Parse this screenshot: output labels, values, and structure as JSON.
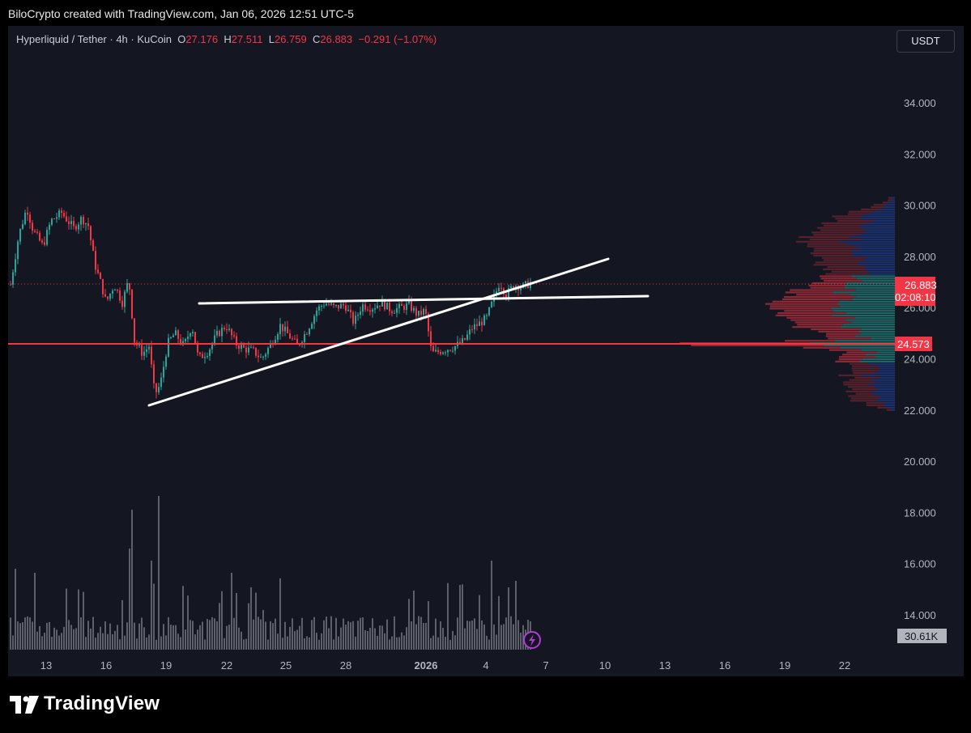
{
  "attribution": "BiloCrypto created with TradingView.com, Jan 06, 2026 12:51 UTC-5",
  "header": {
    "symbol": "Hyperliquid / Tether · 4h · KuCoin",
    "o_label": "O",
    "o_value": "27.176",
    "h_label": "H",
    "h_value": "27.511",
    "l_label": "L",
    "l_value": "26.759",
    "c_label": "C",
    "c_value": "26.883",
    "change": "−0.291 (−1.07%)"
  },
  "currency_button": "USDT",
  "brand": "TradingView",
  "colors": {
    "up": "#26a69a",
    "down": "#f23645",
    "background": "#141721",
    "text": "#b2b5be"
  },
  "chart_data": {
    "type": "candlestick",
    "symbol": "Hyperliquid / Tether",
    "interval": "4h",
    "exchange": "KuCoin",
    "ohlc_last": {
      "open": 27.176,
      "high": 27.511,
      "low": 26.759,
      "close": 26.883,
      "change": -0.291,
      "change_pct": -1.07
    },
    "ylim": [
      13.2,
      36.0
    ],
    "y_ticks": [
      "34.000",
      "32.000",
      "30.000",
      "28.000",
      "26.000",
      "24.000",
      "22.000",
      "20.000",
      "18.000",
      "16.000",
      "14.000"
    ],
    "x_ticks": [
      "13",
      "16",
      "19",
      "22",
      "25",
      "28",
      "2026",
      "4",
      "7",
      "10",
      "13",
      "16",
      "19",
      "22"
    ],
    "price_label": {
      "value": "26.883",
      "countdown": "02:08:10"
    },
    "horizontal_level": {
      "value": "24.573"
    },
    "volume_label": "30.61K",
    "trendlines": [
      {
        "name": "ascending-support",
        "start": [
          "Dec 18",
          22.1
        ],
        "end": [
          "Jan 10",
          27.8
        ]
      },
      {
        "name": "horizontal-resistance",
        "start": [
          "Dec 20",
          26.2
        ],
        "end": [
          "Jan 12",
          26.5
        ]
      }
    ],
    "volume_profile": "visible range, concentrated between 22.0 and 30.3 with peak near 24.57"
  }
}
